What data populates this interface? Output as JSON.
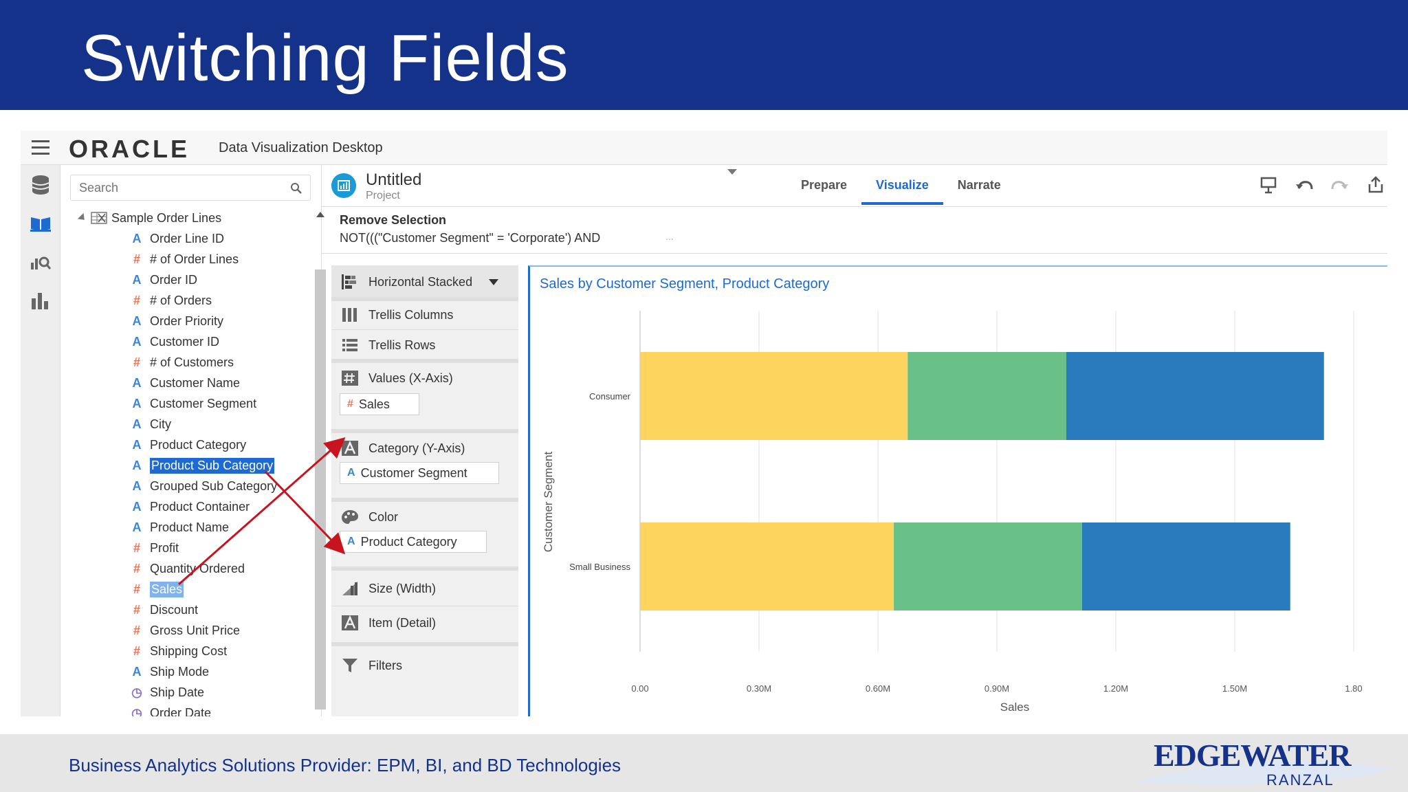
{
  "slide": {
    "title": "Switching Fields",
    "footer": "Business Analytics Solutions Provider:  EPM, BI, and BD Technologies",
    "logo_main": "EDGEWATER",
    "logo_sub": "RANZAL"
  },
  "app": {
    "brand": "ORACLE",
    "name": "Data Visualization Desktop",
    "rail_icons": [
      "database-icon",
      "book-icon",
      "analytics-icon",
      "bar-chart-icon"
    ]
  },
  "datapanel": {
    "search_placeholder": "Search",
    "source": "Sample Order Lines",
    "fields": [
      {
        "label": "Order Line ID",
        "kind": "attr"
      },
      {
        "label": "# of Order Lines",
        "kind": "measure"
      },
      {
        "label": "Order ID",
        "kind": "attr"
      },
      {
        "label": "# of Orders",
        "kind": "measure"
      },
      {
        "label": "Order Priority",
        "kind": "attr"
      },
      {
        "label": "Customer ID",
        "kind": "attr"
      },
      {
        "label": "# of Customers",
        "kind": "measure"
      },
      {
        "label": "Customer Name",
        "kind": "attr"
      },
      {
        "label": "Customer Segment",
        "kind": "attr"
      },
      {
        "label": "City",
        "kind": "attr"
      },
      {
        "label": "Product Category",
        "kind": "attr"
      },
      {
        "label": "Product Sub Category",
        "kind": "attr",
        "state": "selected"
      },
      {
        "label": "Grouped Sub Category",
        "kind": "attr"
      },
      {
        "label": "Product Container",
        "kind": "attr"
      },
      {
        "label": "Product Name",
        "kind": "attr"
      },
      {
        "label": "Profit",
        "kind": "measure"
      },
      {
        "label": "Quantity Ordered",
        "kind": "measure"
      },
      {
        "label": "Sales",
        "kind": "measure",
        "state": "selected-light"
      },
      {
        "label": "Discount",
        "kind": "measure"
      },
      {
        "label": "Gross Unit Price",
        "kind": "measure"
      },
      {
        "label": "Shipping Cost",
        "kind": "measure"
      },
      {
        "label": "Ship Mode",
        "kind": "attr"
      },
      {
        "label": "Ship Date",
        "kind": "date"
      },
      {
        "label": "Order Date",
        "kind": "date"
      }
    ]
  },
  "project": {
    "title": "Untitled",
    "subtitle": "Project",
    "tabs": [
      {
        "label": "Prepare",
        "active": false
      },
      {
        "label": "Visualize",
        "active": true
      },
      {
        "label": "Narrate",
        "active": false
      }
    ],
    "filter_label": "Remove Selection",
    "filter_expr": "NOT(((\"Customer Segment\" = 'Corporate') AND",
    "filter_more": "..."
  },
  "grammar": {
    "chart_type": "Horizontal Stacked",
    "trellis_columns": "Trellis Columns",
    "trellis_rows": "Trellis Rows",
    "values_label": "Values (X-Axis)",
    "values_chip": "Sales",
    "category_label": "Category (Y-Axis)",
    "category_chip": "Customer Segment",
    "color_label": "Color",
    "color_chip": "Product Category",
    "size_label": "Size (Width)",
    "item_label": "Item (Detail)",
    "filters_label": "Filters"
  },
  "colors": {
    "accent": "#1d6ad3",
    "series": [
      "#fdd45e",
      "#69c187",
      "#2a7bbd"
    ],
    "annotation": "#c8141e"
  },
  "chart_data": {
    "type": "bar",
    "orientation": "horizontal",
    "stacked": true,
    "title": "Sales by Customer Segment, Product Category",
    "xlabel": "Sales",
    "ylabel": "Customer Segment",
    "categories": [
      "Consumer",
      "Small Business"
    ],
    "series": [
      {
        "values": [
          0.675,
          0.64
        ]
      },
      {
        "values": [
          0.4,
          0.475
        ]
      },
      {
        "values": [
          0.65,
          0.525
        ]
      }
    ],
    "xlim": [
      0,
      1.8
    ],
    "xticks": [
      "0.00",
      "0.30M",
      "0.60M",
      "0.90M",
      "1.20M",
      "1.50M",
      "1.80"
    ],
    "grid": true
  }
}
